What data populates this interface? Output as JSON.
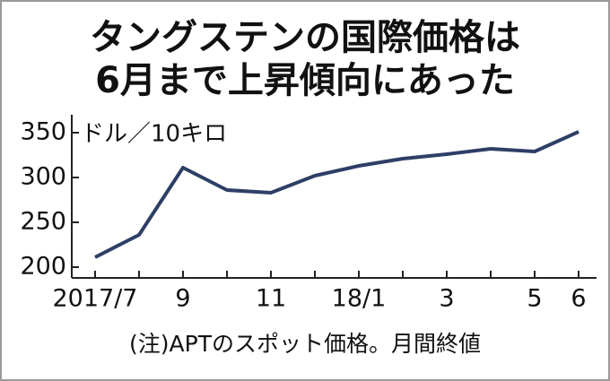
{
  "chart_data": {
    "type": "line",
    "title": "タングステンの国際価格は",
    "subtitle": "6月まで上昇傾向にあった",
    "y_label": "ドル／10キロ",
    "note": "(注)APTのスポット価格。月間終値",
    "categories": [
      "2017/7",
      null,
      "9",
      null,
      "11",
      null,
      "18/1",
      null,
      "3",
      null,
      "5",
      "6"
    ],
    "values": [
      211,
      236,
      311,
      286,
      283,
      302,
      313,
      321,
      326,
      332,
      329,
      351
    ],
    "color": "#2e3f66",
    "ylim": [
      188,
      370
    ],
    "yticks": [
      200,
      250,
      300,
      350
    ],
    "grid": false
  }
}
